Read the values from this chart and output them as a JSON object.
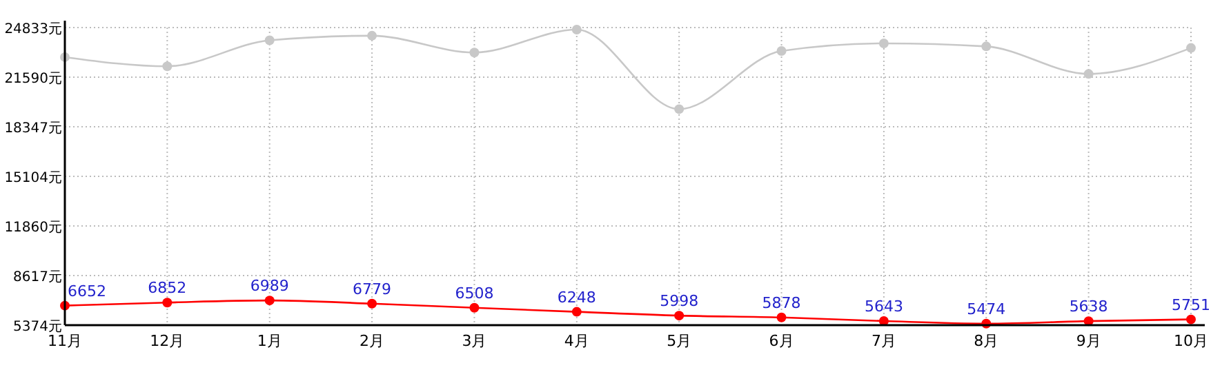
{
  "chart_data": {
    "type": "line",
    "categories": [
      "11月",
      "12月",
      "1月",
      "2月",
      "3月",
      "4月",
      "5月",
      "6月",
      "7月",
      "8月",
      "9月",
      "10月"
    ],
    "ylim": [
      5374,
      24833
    ],
    "yticks": [
      {
        "value": 5374,
        "label": "5374元"
      },
      {
        "value": 8617,
        "label": "8617元"
      },
      {
        "value": 11860,
        "label": "11860元"
      },
      {
        "value": 15104,
        "label": "15104元"
      },
      {
        "value": 18347,
        "label": "18347元"
      },
      {
        "value": 21590,
        "label": "21590元"
      },
      {
        "value": 24833,
        "label": "24833元"
      }
    ],
    "series": [
      {
        "color": "#c8c8c8",
        "values": [
          22900,
          22300,
          24000,
          24300,
          23200,
          24700,
          19500,
          23300,
          23800,
          23600,
          21800,
          23500
        ]
      },
      {
        "color": "#ff0000",
        "values": [
          6652,
          6852,
          6989,
          6779,
          6508,
          6248,
          5998,
          5878,
          5643,
          5474,
          5638,
          5751
        ],
        "data_labels": true
      }
    ],
    "grid": true,
    "marker": "circle"
  }
}
